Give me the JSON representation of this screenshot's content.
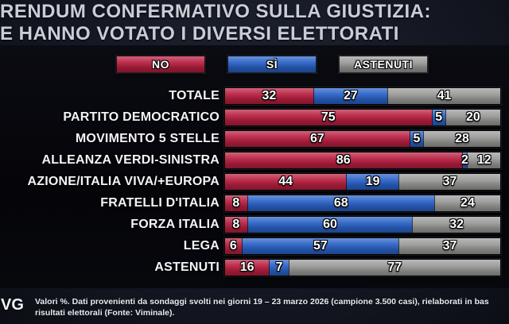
{
  "title": {
    "line1": "RENDUM CONFERMATIVO SULLA GIUSTIZIA:",
    "line2": "E HANNO VOTATO I DIVERSI ELETTORATI"
  },
  "legend": [
    {
      "label": "NO",
      "color": "#b81f40"
    },
    {
      "label": "SÌ",
      "color": "#2a62c6"
    },
    {
      "label": "ASTENUTI",
      "color": "#9a9a98"
    }
  ],
  "chart_data": {
    "type": "bar",
    "orientation": "horizontal",
    "stacked": true,
    "title": "RENDUM CONFERMATIVO SULLA GIUSTIZIA: E HANNO VOTATO I DIVERSI ELETTORATI",
    "categories": [
      "TOTALE",
      "PARTITO DEMOCRATICO",
      "MOVIMENTO 5 STELLE",
      "ALLEANZA VERDI-SINISTRA",
      "AZIONE/ITALIA VIVA/+EUROPA",
      "FRATELLI D'ITALIA",
      "FORZA ITALIA",
      "LEGA",
      "ASTENUTI"
    ],
    "series": [
      {
        "name": "NO",
        "color": "#b81f40",
        "values": [
          32,
          75,
          67,
          86,
          44,
          8,
          8,
          6,
          16
        ]
      },
      {
        "name": "SÌ",
        "color": "#2a62c6",
        "values": [
          27,
          5,
          5,
          2,
          19,
          68,
          60,
          57,
          7
        ]
      },
      {
        "name": "ASTENUTI",
        "color": "#9a9a98",
        "values": [
          41,
          20,
          28,
          12,
          37,
          24,
          32,
          37,
          77
        ]
      }
    ],
    "xlim": [
      0,
      100
    ],
    "value_unit": "%",
    "legend_position": "top",
    "grid": false
  },
  "footer": {
    "logo": "VG",
    "line1": "Valori %. Dati provenienti da sondaggi svolti nei giorni 19 – 23 marzo 2026 (campione 3.500 casi), rielaborati in bas",
    "line2": "risultati elettorali (Fonte: Viminale)."
  }
}
